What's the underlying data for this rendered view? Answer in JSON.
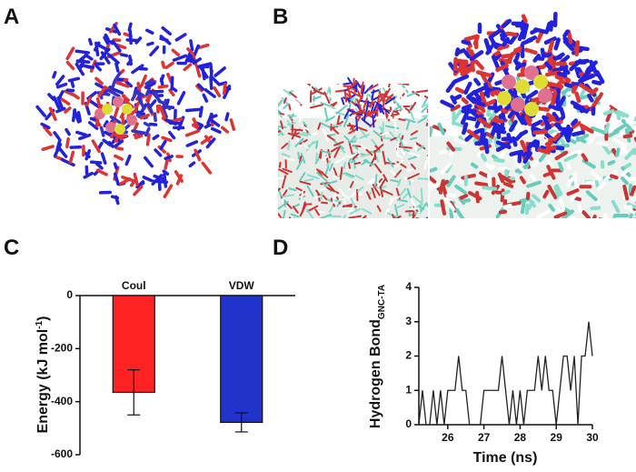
{
  "panels": [
    "A",
    "B",
    "C",
    "D"
  ],
  "chart_data": [
    {
      "type": "bar",
      "ylabel": {
        "text": "Energy (kJ mol",
        "sup": "-1",
        "tail": ")"
      },
      "categories": [
        "Coul",
        "VDW"
      ],
      "values": [
        -365,
        -478
      ],
      "errors": [
        85,
        36
      ],
      "colors": [
        "#ff2222",
        "#2233cc"
      ],
      "ylim": [
        -600,
        0
      ],
      "yticks": [
        0,
        -200,
        -400,
        -600
      ]
    },
    {
      "type": "line",
      "ylabel": {
        "text": "Hydrogen Bond",
        "sub": "GNC-TA"
      },
      "xlabel": "Time (ns)",
      "color": "#222222",
      "x": [
        25.2,
        25.3,
        25.4,
        25.5,
        25.6,
        25.7,
        25.8,
        25.9,
        26.0,
        26.1,
        26.2,
        26.3,
        26.4,
        26.5,
        26.6,
        26.7,
        26.8,
        26.9,
        27.0,
        27.1,
        27.2,
        27.3,
        27.4,
        27.5,
        27.6,
        27.7,
        27.8,
        27.9,
        28.0,
        28.1,
        28.2,
        28.3,
        28.4,
        28.5,
        28.6,
        28.7,
        28.8,
        28.9,
        29.0,
        29.1,
        29.2,
        29.3,
        29.4,
        29.5,
        29.6,
        29.7,
        29.8,
        29.9,
        30.0
      ],
      "values": [
        0,
        1,
        0,
        0,
        1,
        0,
        1,
        0,
        1,
        1,
        1,
        2,
        1,
        1,
        0,
        0,
        0,
        0,
        1,
        1,
        1,
        1,
        1,
        2,
        1,
        0,
        1,
        0,
        1,
        0,
        1,
        1,
        1,
        2,
        1,
        2,
        1,
        1,
        0,
        1,
        2,
        2,
        1,
        2,
        0,
        2,
        2,
        3,
        2
      ],
      "xlim": [
        25.2,
        30
      ],
      "xticks": [
        26,
        27,
        28,
        29,
        30
      ],
      "ylim": [
        0,
        4
      ],
      "yticks": [
        0,
        1,
        2,
        3,
        4
      ]
    }
  ]
}
